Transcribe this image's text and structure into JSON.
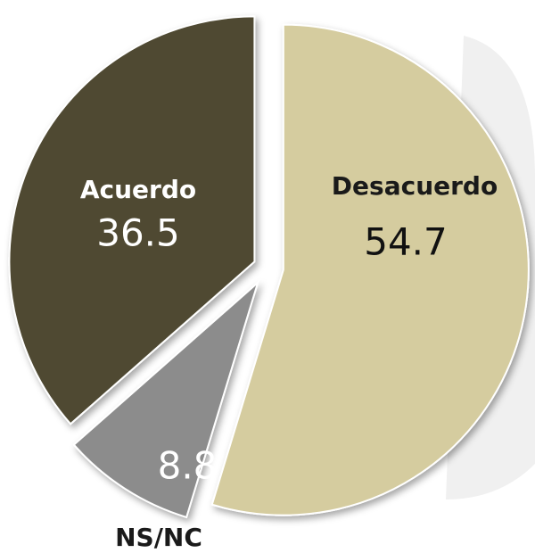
{
  "chart_data": {
    "type": "pie",
    "categories": [
      "Desacuerdo",
      "NS/NC",
      "Acuerdo"
    ],
    "values": [
      54.7,
      8.8,
      36.5
    ],
    "colors": [
      "#d5cc9f",
      "#8c8c8c",
      "#4f4a32"
    ]
  }
}
